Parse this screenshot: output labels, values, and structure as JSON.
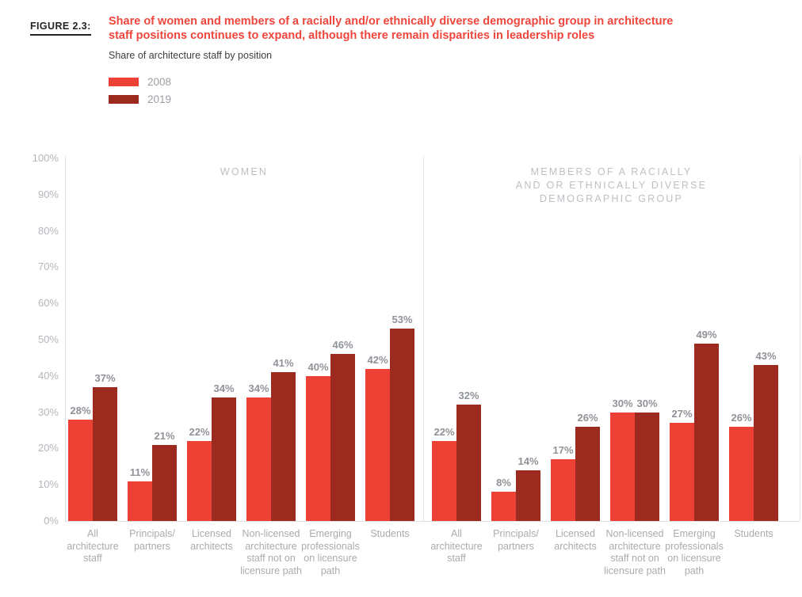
{
  "figure_label": "FIGURE 2.3:",
  "header": {
    "title_line1": "Share of women and members of a racially and/or ethnically diverse demographic group in architecture",
    "title_line2": "staff positions continues to expand, although there remain disparities in leadership roles",
    "subtitle": "Share of architecture staff by position"
  },
  "legend": {
    "items": [
      {
        "label": "2008",
        "color": "#ee4135"
      },
      {
        "label": "2019",
        "color": "#9c2a1e"
      }
    ]
  },
  "colors": {
    "series_2008_red": "#ee4135",
    "series_2019_dark_red": "#9c2a1e",
    "title_red": "#f1463c",
    "tick_gray": "#b3b6bb",
    "value_label_gray": "#8f9298",
    "category_gray": "#a9abaf",
    "panel_title_gray": "#bcbfc4",
    "axis_line_gray": "#e4e4e7"
  },
  "chart_data": {
    "type": "bar",
    "title": "Share of women and members of a racially and/or ethnically diverse demographic group in architecture staff positions continues to expand, although there remain disparities in leadership roles",
    "subtitle": "Share of architecture staff by position",
    "ylim": [
      0,
      100
    ],
    "grid": false,
    "legend_position": "top-left",
    "y_ticks": [
      {
        "label": "0%",
        "value": 0
      },
      {
        "label": "10%",
        "value": 10
      },
      {
        "label": "20%",
        "value": 20
      },
      {
        "label": "30%",
        "value": 30
      },
      {
        "label": "40%",
        "value": 40
      },
      {
        "label": "50%",
        "value": 50
      },
      {
        "label": "60%",
        "value": 60
      },
      {
        "label": "70%",
        "value": 70
      },
      {
        "label": "80%",
        "value": 80
      },
      {
        "label": "90%",
        "value": 90
      },
      {
        "label": "100%",
        "value": 100
      }
    ],
    "categories": [
      "All architecture staff",
      "Principals/partners",
      "Licensed architects",
      "Non-licensed architecture staff not on licensure path",
      "Emerging professionals on licensure path",
      "Students"
    ],
    "categories_display": [
      "All\narchitecture\nstaff",
      "Principals/\npartners",
      "Licensed\narchitects",
      "Non-licensed\narchitecture\nstaff not on\nlicensure path",
      "Emerging\nprofessionals\non licensure\npath",
      "Students"
    ],
    "panels": [
      {
        "title": "Women",
        "title_display": "WOMEN",
        "series": [
          {
            "name": "2008",
            "color": "#ee4135",
            "values": [
              28,
              11,
              22,
              34,
              40,
              42
            ]
          },
          {
            "name": "2019",
            "color": "#9c2a1e",
            "values": [
              37,
              21,
              34,
              41,
              46,
              53
            ]
          }
        ]
      },
      {
        "title": "Members of a racially and or ethnically diverse demographic group",
        "title_display": "MEMBERS OF A RACIALLY\nAND OR ETHNICALLY DIVERSE\nDEMOGRAPHIC GROUP",
        "series": [
          {
            "name": "2008",
            "color": "#ee4135",
            "values": [
              22,
              8,
              17,
              30,
              27,
              26
            ]
          },
          {
            "name": "2019",
            "color": "#9c2a1e",
            "values": [
              32,
              14,
              26,
              30,
              49,
              43
            ]
          }
        ]
      }
    ]
  }
}
